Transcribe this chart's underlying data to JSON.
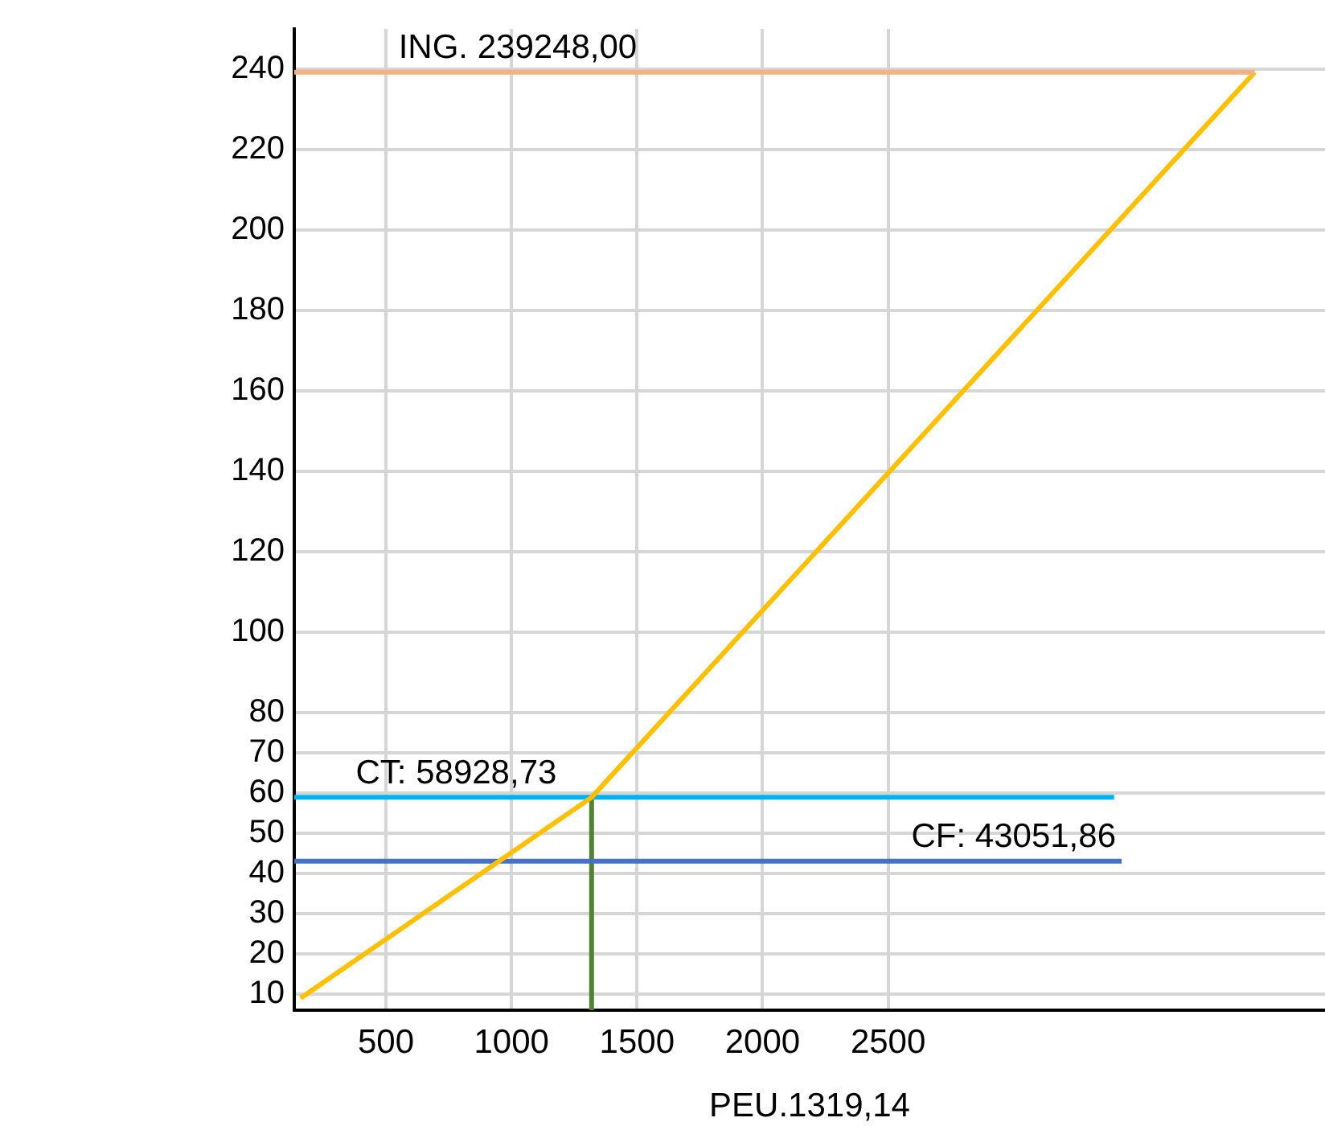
{
  "chart_data": {
    "type": "line",
    "series": [
      {
        "color": "#f4b183",
        "x": [
          135,
          3960
        ],
        "values": [
          239.248,
          239.248
        ]
      },
      {
        "color": "#ffc000",
        "x": [
          160,
          1319.14,
          3960
        ],
        "values": [
          9,
          58.92873,
          239.248
        ]
      },
      {
        "color": "#00b0f0",
        "x": [
          135,
          3400
        ],
        "values": [
          58.92873,
          58.92873
        ]
      },
      {
        "color": "#4472c4",
        "x": [
          135,
          3430
        ],
        "values": [
          43.05186,
          43.05186
        ]
      },
      {
        "color": "#548235",
        "x": [
          1319.14,
          1319.14
        ],
        "values": [
          58.92873,
          6
        ]
      }
    ],
    "xlim": [
      135,
      4240
    ],
    "xticks": [
      500,
      1000,
      1500,
      2000,
      2500
    ],
    "ylim": [
      6,
      250
    ],
    "yticks": [
      10,
      20,
      30,
      40,
      50,
      60,
      70,
      80,
      100,
      120,
      140,
      160,
      180,
      200,
      220,
      240
    ],
    "grid": true,
    "legend": false,
    "marker": "none",
    "line_style": "solid",
    "annotations": [
      {
        "text": "ING. 239248,00",
        "x": 1025,
        "y": 239.248
      },
      {
        "text": "CT: 58928,73",
        "x": 780,
        "y": 58.92873
      },
      {
        "text": "CF: 43051,86",
        "x": 3000,
        "y": 43.05186
      },
      "PEU.1319,14"
    ]
  }
}
